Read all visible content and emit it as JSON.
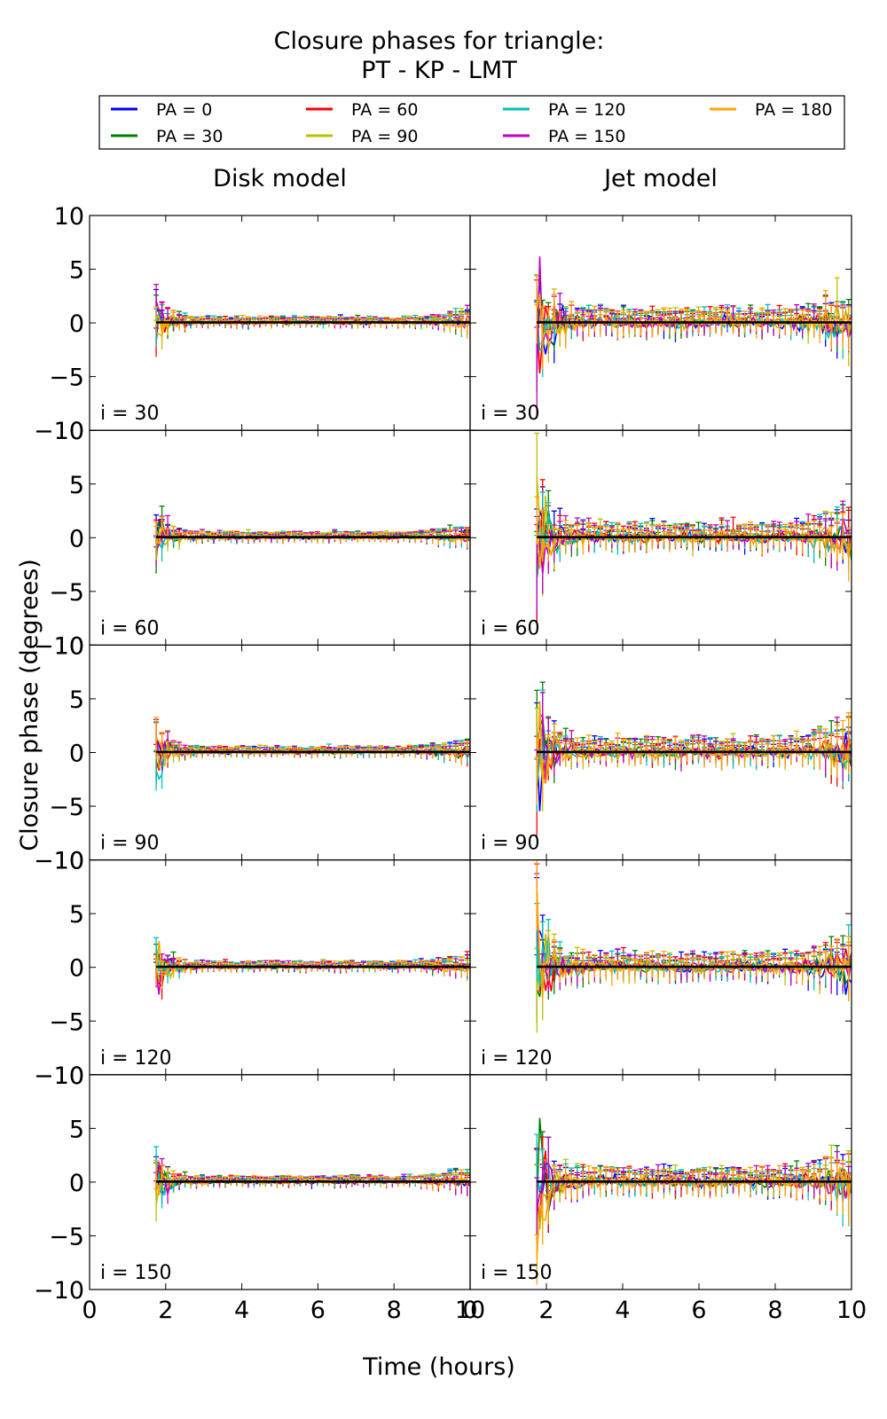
{
  "chart_data": {
    "type": "line",
    "title_line1": "Closure phases for triangle:",
    "title_line2": "PT - KP - LMT",
    "xlabel": "Time (hours)",
    "ylabel": "Closure phase (degrees)",
    "xlim": [
      0,
      10
    ],
    "ylim": [
      -10,
      10
    ],
    "x_ticks": [
      0,
      2,
      4,
      6,
      8,
      10
    ],
    "y_ticks": [
      -10,
      -5,
      0,
      5,
      10
    ],
    "x_start": 1.75,
    "x_end": 10,
    "grid": false,
    "legend_position": "top",
    "columns": [
      {
        "title": "Disk model",
        "near_start_amplitude": 3.5,
        "flat_noise": 0.25,
        "end_noise": 0.5,
        "errorbar": 0.35
      },
      {
        "title": "Jet model",
        "near_start_amplitude": 8.5,
        "flat_noise": 0.7,
        "end_noise": 1.8,
        "errorbar": 0.9
      }
    ],
    "rows": [
      {
        "label": "i = 30"
      },
      {
        "label": "i = 60"
      },
      {
        "label": "i = 90"
      },
      {
        "label": "i = 120"
      },
      {
        "label": "i = 150"
      }
    ],
    "series": [
      {
        "name": "PA = 0",
        "color": "#0000ff"
      },
      {
        "name": "PA = 30",
        "color": "#008000"
      },
      {
        "name": "PA = 60",
        "color": "#ff0000"
      },
      {
        "name": "PA = 90",
        "color": "#bfbf00"
      },
      {
        "name": "PA = 120",
        "color": "#00bfbf"
      },
      {
        "name": "PA = 150",
        "color": "#bf00bf"
      },
      {
        "name": "PA = 180",
        "color": "#ffa500"
      }
    ],
    "mean_line_color": "#000000"
  }
}
